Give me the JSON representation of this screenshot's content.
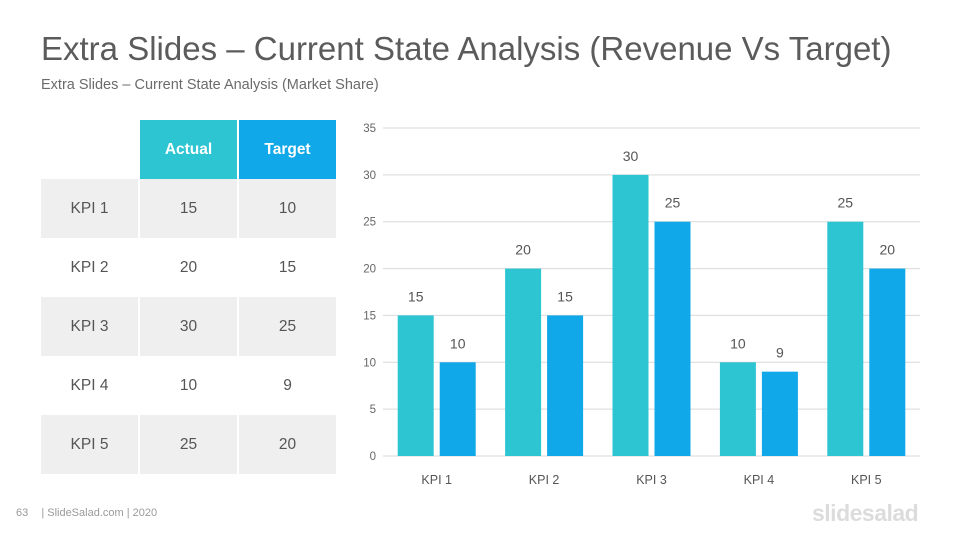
{
  "title": "Extra Slides – Current State Analysis (Revenue Vs Target)",
  "subtitle": "Extra Slides – Current State Analysis (Market Share)",
  "table": {
    "headers": [
      "",
      "Actual",
      "Target"
    ],
    "rows": [
      [
        "KPI 1",
        "15",
        "10"
      ],
      [
        "KPI 2",
        "20",
        "15"
      ],
      [
        "KPI 3",
        "30",
        "25"
      ],
      [
        "KPI 4",
        "10",
        "9"
      ],
      [
        "KPI 5",
        "25",
        "20"
      ]
    ]
  },
  "footer": {
    "page": "63",
    "text": "| SlideSalad.com | 2020"
  },
  "logo": "slidesalad",
  "colors": {
    "actual": "#2ec5d3",
    "target": "#10a8e8",
    "row_shade": "#efefef",
    "grid": "#d9d9d9"
  },
  "chart_data": {
    "type": "bar",
    "categories": [
      "KPI 1",
      "KPI 2",
      "KPI 3",
      "KPI 4",
      "KPI 5"
    ],
    "series": [
      {
        "values": [
          15,
          20,
          30,
          10,
          25
        ],
        "color": "#2ec5d3"
      },
      {
        "values": [
          10,
          15,
          25,
          9,
          20
        ],
        "color": "#10a8e8"
      }
    ],
    "ylim": [
      0,
      35
    ],
    "yticks": [
      0,
      5,
      10,
      15,
      20,
      25,
      30,
      35
    ],
    "data_labels": true,
    "grid": true,
    "legend": "none"
  }
}
